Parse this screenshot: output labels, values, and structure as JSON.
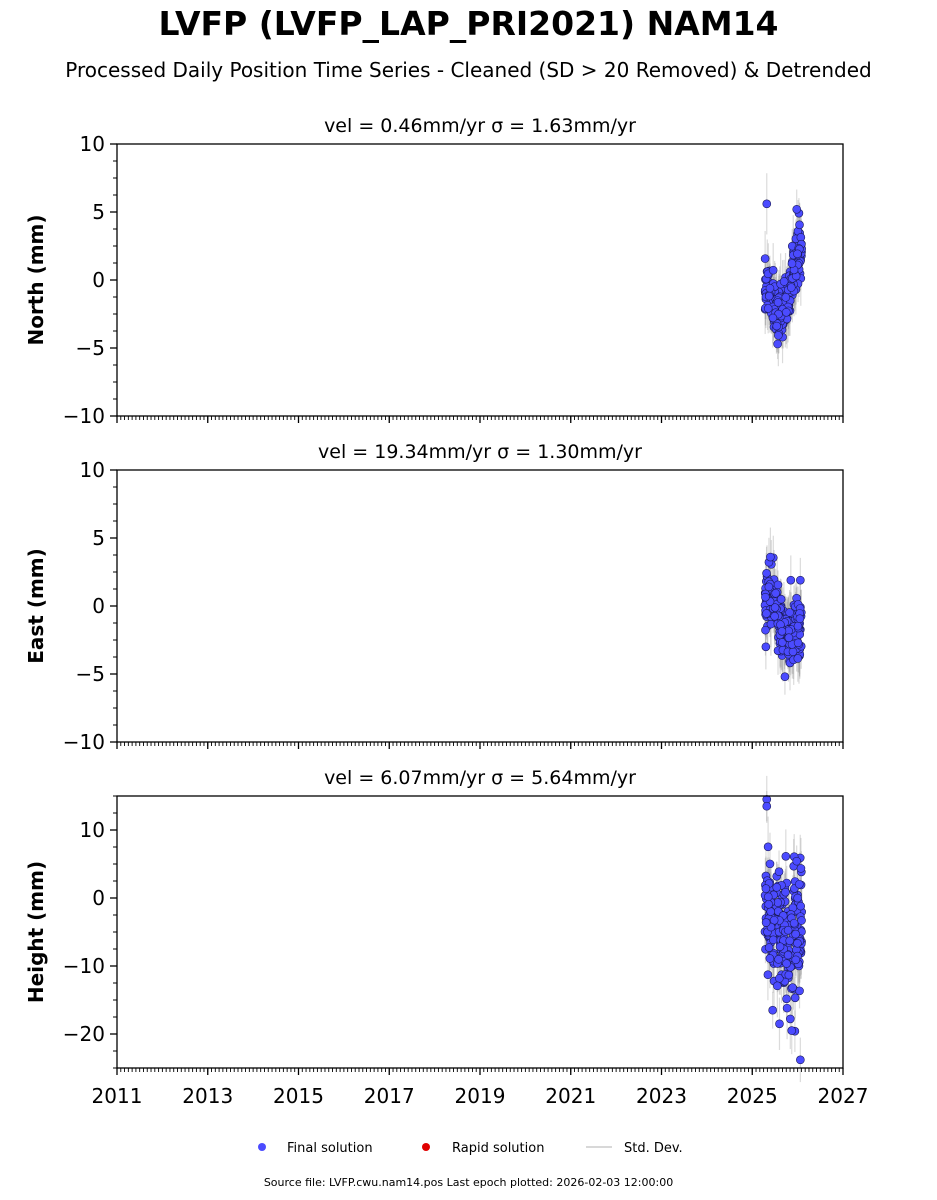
{
  "title": "LVFP (LVFP_LAP_PRI2021) NAM14",
  "subtitle": "Processed Daily Position Time Series - Cleaned (SD > 20 Removed) & Detrended",
  "footer": "Source file: LVFP.cwu.nam14.pos  Last epoch plotted: 2026-02-03 12:00:00",
  "colors": {
    "final": "#4b4bff",
    "rapid": "#e00000",
    "stddev": "#b0b0b0"
  },
  "chart_data": [
    {
      "type": "scatter",
      "panel_title": "vel = 0.46mm/yr   σ = 1.63mm/yr",
      "ylabel": "North (mm)",
      "xlim": [
        2011,
        2027
      ],
      "ylim": [
        -10,
        10
      ],
      "yticks": [
        -10,
        -5,
        0,
        5,
        10
      ],
      "xticks": [
        2011,
        2013,
        2015,
        2017,
        2019,
        2021,
        2023,
        2025,
        2027
      ],
      "series": [
        {
          "name": "Final solution",
          "x_range": [
            2025.28,
            2026.09
          ],
          "y_range": [
            -5.0,
            5.6
          ],
          "trend": [
            [
              2025.28,
              -0.5
            ],
            [
              2025.5,
              -2.2
            ],
            [
              2025.65,
              -2.5
            ],
            [
              2025.8,
              -1.0
            ],
            [
              2025.95,
              1.5
            ],
            [
              2026.09,
              2.5
            ]
          ],
          "outliers": [
            [
              2025.32,
              5.6
            ],
            [
              2025.98,
              5.2
            ]
          ]
        }
      ]
    },
    {
      "type": "scatter",
      "panel_title": "vel = 19.34mm/yr   σ = 1.30mm/yr",
      "ylabel": "East (mm)",
      "xlim": [
        2011,
        2027
      ],
      "ylim": [
        -10,
        10
      ],
      "yticks": [
        -10,
        -5,
        0,
        5,
        10
      ],
      "xticks": [
        2011,
        2013,
        2015,
        2017,
        2019,
        2021,
        2023,
        2025,
        2027
      ],
      "series": [
        {
          "name": "Final solution",
          "x_range": [
            2025.28,
            2026.09
          ],
          "y_range": [
            -5.2,
            3.6
          ],
          "trend": [
            [
              2025.28,
              0.0
            ],
            [
              2025.45,
              0.5
            ],
            [
              2025.65,
              -1.5
            ],
            [
              2025.85,
              -2.0
            ],
            [
              2026.09,
              -1.5
            ]
          ],
          "outliers": [
            [
              2025.4,
              3.6
            ],
            [
              2025.3,
              -3.0
            ],
            [
              2026.06,
              1.9
            ],
            [
              2025.85,
              1.9
            ],
            [
              2025.72,
              -5.2
            ]
          ]
        }
      ]
    },
    {
      "type": "scatter",
      "panel_title": "vel = 6.07mm/yr   σ = 5.64mm/yr",
      "ylabel": "Height (mm)",
      "xlim": [
        2011,
        2027
      ],
      "ylim": [
        -25,
        15
      ],
      "yticks": [
        -20,
        -10,
        0,
        10
      ],
      "xticks": [
        2011,
        2013,
        2015,
        2017,
        2019,
        2021,
        2023,
        2025,
        2027
      ],
      "xticklabels": [
        "2011",
        "2013",
        "2015",
        "2017",
        "2019",
        "2021",
        "2023",
        "2025",
        "2027"
      ],
      "series": [
        {
          "name": "Final solution",
          "x_range": [
            2025.28,
            2026.09
          ],
          "y_range": [
            -24,
            14.5
          ],
          "trend": [
            [
              2025.28,
              0.0
            ],
            [
              2025.45,
              -4.0
            ],
            [
              2025.65,
              -6.0
            ],
            [
              2025.85,
              -7.0
            ],
            [
              2026.09,
              -5.0
            ]
          ],
          "outliers": [
            [
              2025.32,
              14.5
            ],
            [
              2025.32,
              13.5
            ],
            [
              2026.06,
              -23.8
            ],
            [
              2025.87,
              -19.5
            ],
            [
              2025.6,
              -18.5
            ],
            [
              2025.45,
              -16.5
            ]
          ]
        }
      ]
    }
  ],
  "legend": {
    "placement": "bottom-center",
    "entries": [
      {
        "label": "Final solution",
        "marker": "circle",
        "color": "#4b4bff"
      },
      {
        "label": "Rapid solution",
        "marker": "circle",
        "color": "#e00000"
      },
      {
        "label": "Std. Dev.",
        "marker": "line",
        "color": "#b0b0b0"
      }
    ]
  }
}
